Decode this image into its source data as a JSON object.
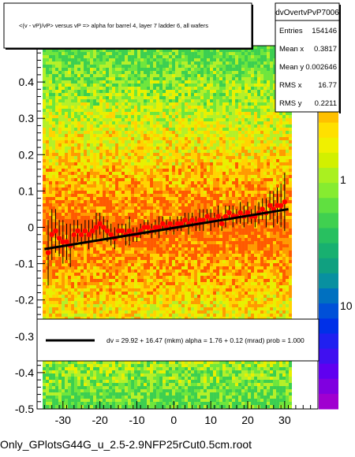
{
  "window": {
    "file_caption": "Only_GPlotsG44G_u_2.5-2.9NFP25rCut0.5cm.root"
  },
  "title_box": {
    "text": "<(v - vP)/vP> versus   vP => alpha for barrel 4, layer 7 ladder 6, all wafers"
  },
  "stats_box": {
    "name": "dvOvertvPvP7006",
    "rows": [
      {
        "label": "Entries",
        "value": "154146"
      },
      {
        "label": "Mean x",
        "value": "0.3817"
      },
      {
        "label": "Mean y",
        "value": "0.002646"
      },
      {
        "label": "RMS x",
        "value": "16.77"
      },
      {
        "label": "RMS y",
        "value": "0.2211"
      }
    ]
  },
  "fit_legend": {
    "text": "dv =   29.92 +  16.47 (mkm) alpha =    1.76 +   0.12 (mrad) prob =  1.000"
  },
  "colors": {
    "fit_line": "#000000",
    "profile_markers": "#ff0000",
    "heatmap_low": "#33dd33",
    "heatmap_mid": "#ffee00",
    "heatmap_high": "#ff4400"
  },
  "chart_data": {
    "type": "heatmap",
    "title": "<(v - vP)/vP> versus   vP => alpha for barrel 4, layer 7 ladder 6, all wafers",
    "xlabel": "",
    "ylabel": "",
    "xlim": [
      -37,
      39
    ],
    "ylim": [
      -0.5,
      0.5
    ],
    "x_ticks": [
      "-30",
      "-20",
      "-10",
      "0",
      "10",
      "20",
      "30"
    ],
    "y_ticks": [
      "-0.5",
      "-0.4",
      "-0.3",
      "-0.2",
      "-0.1",
      "0",
      "0.1",
      "0.2",
      "0.3",
      "0.4"
    ],
    "color_scale": {
      "type": "log",
      "tick_labels": [
        "1",
        "10"
      ]
    },
    "grid": false,
    "fit_line": {
      "x1": -35,
      "y1": -0.06,
      "x2": 31,
      "y2": 0.05
    },
    "profile_series": {
      "name": "",
      "x": [
        -34,
        -33,
        -32,
        -31,
        -30,
        -29,
        -28,
        -27,
        -26,
        -25,
        -24,
        -23,
        -22,
        -21,
        -20,
        -19,
        -18,
        -17,
        -16,
        -15,
        -14,
        -13,
        -12,
        -11,
        -10,
        -9,
        -8,
        -7,
        -6,
        -5,
        -4,
        -3,
        -2,
        -1,
        0,
        1,
        2,
        3,
        4,
        5,
        6,
        7,
        8,
        9,
        10,
        11,
        12,
        13,
        14,
        15,
        16,
        17,
        18,
        19,
        20,
        21,
        22,
        23,
        24,
        25,
        26,
        27,
        28,
        29,
        30
      ],
      "y": [
        -0.07,
        -0.02,
        -0.01,
        -0.03,
        -0.04,
        -0.04,
        -0.05,
        -0.02,
        -0.01,
        -0.02,
        -0.01,
        -0.02,
        -0.01,
        0.0,
        0.01,
        0.0,
        -0.01,
        -0.02,
        -0.03,
        -0.01,
        -0.01,
        -0.02,
        -0.01,
        -0.02,
        -0.02,
        -0.01,
        0.0,
        0.0,
        -0.01,
        0.0,
        0.0,
        0.01,
        0.0,
        0.01,
        0.0,
        0.01,
        0.01,
        0.02,
        0.01,
        0.02,
        0.01,
        0.02,
        0.02,
        0.03,
        0.02,
        0.02,
        0.03,
        0.01,
        0.03,
        0.04,
        0.03,
        0.03,
        0.04,
        0.03,
        0.04,
        0.03,
        0.03,
        0.04,
        0.05,
        0.04,
        0.06,
        0.05,
        0.06,
        0.06,
        0.07
      ],
      "err": [
        0.09,
        0.07,
        0.06,
        0.05,
        0.06,
        0.05,
        0.06,
        0.04,
        0.03,
        0.03,
        0.03,
        0.04,
        0.03,
        0.04,
        0.03,
        0.03,
        0.03,
        0.03,
        0.03,
        0.02,
        0.02,
        0.03,
        0.04,
        0.02,
        0.02,
        0.02,
        0.02,
        0.02,
        0.02,
        0.02,
        0.03,
        0.02,
        0.02,
        0.02,
        0.02,
        0.02,
        0.02,
        0.02,
        0.03,
        0.02,
        0.02,
        0.03,
        0.03,
        0.02,
        0.03,
        0.02,
        0.03,
        0.02,
        0.03,
        0.02,
        0.03,
        0.02,
        0.03,
        0.03,
        0.03,
        0.02,
        0.03,
        0.03,
        0.03,
        0.04,
        0.04,
        0.05,
        0.05,
        0.06,
        0.08
      ]
    }
  }
}
